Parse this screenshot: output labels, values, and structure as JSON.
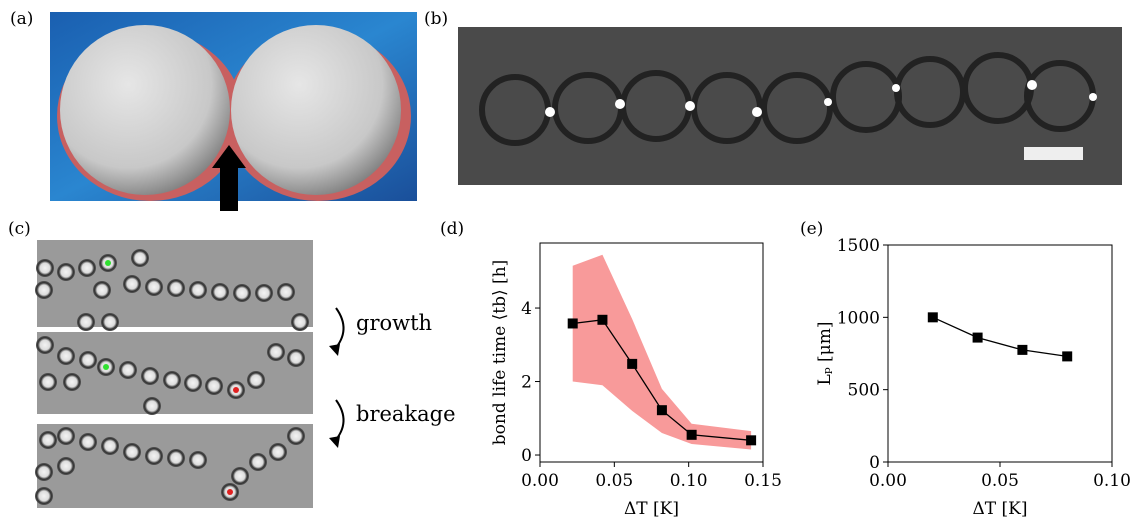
{
  "panels": {
    "a": "(a)",
    "b": "(b)",
    "c": "(c)",
    "d": "(d)",
    "e": "(e)"
  },
  "annotations": {
    "growth": "growth",
    "breakage": "breakage"
  },
  "chart_data": [
    {
      "type": "line",
      "xlabel": "ΔT [K]",
      "ylabel": "bond life time ⟨tb⟩ [h]",
      "x": [
        0.022,
        0.042,
        0.062,
        0.082,
        0.102,
        0.142
      ],
      "series": [
        {
          "color": "#000000",
          "values": [
            3.58,
            3.68,
            2.48,
            1.22,
            0.55,
            0.4
          ]
        }
      ],
      "band": {
        "color": "#f89a9a",
        "lower": [
          2.0,
          1.9,
          1.2,
          0.6,
          0.3,
          0.15
        ],
        "upper": [
          5.15,
          5.45,
          3.7,
          1.8,
          0.85,
          0.65
        ]
      },
      "xlim": [
        0,
        0.15
      ],
      "ylim": [
        -0.19,
        5.77
      ],
      "xticks": [
        {
          "value": 0,
          "label": "0.00"
        },
        {
          "value": 0.05,
          "label": "0.05"
        },
        {
          "value": 0.1,
          "label": "0.10"
        },
        {
          "value": 0.15,
          "label": "0.15"
        }
      ],
      "yticks": [
        0,
        2,
        4
      ]
    },
    {
      "type": "line",
      "xlabel": "ΔT [K]",
      "ylabel": "Lₚ [μm]",
      "x": [
        0.02,
        0.04,
        0.06,
        0.08
      ],
      "series": [
        {
          "color": "#000000",
          "values": [
            1000,
            860,
            775,
            730
          ]
        }
      ],
      "xlim": [
        0,
        0.1
      ],
      "ylim": [
        0,
        1500
      ],
      "xticks": [
        {
          "value": 0,
          "label": "0.00"
        },
        {
          "value": 0.05,
          "label": "0.05"
        },
        {
          "value": 0.1,
          "label": "0.10"
        }
      ],
      "yticks": [
        0,
        500,
        1000,
        1500
      ]
    }
  ]
}
